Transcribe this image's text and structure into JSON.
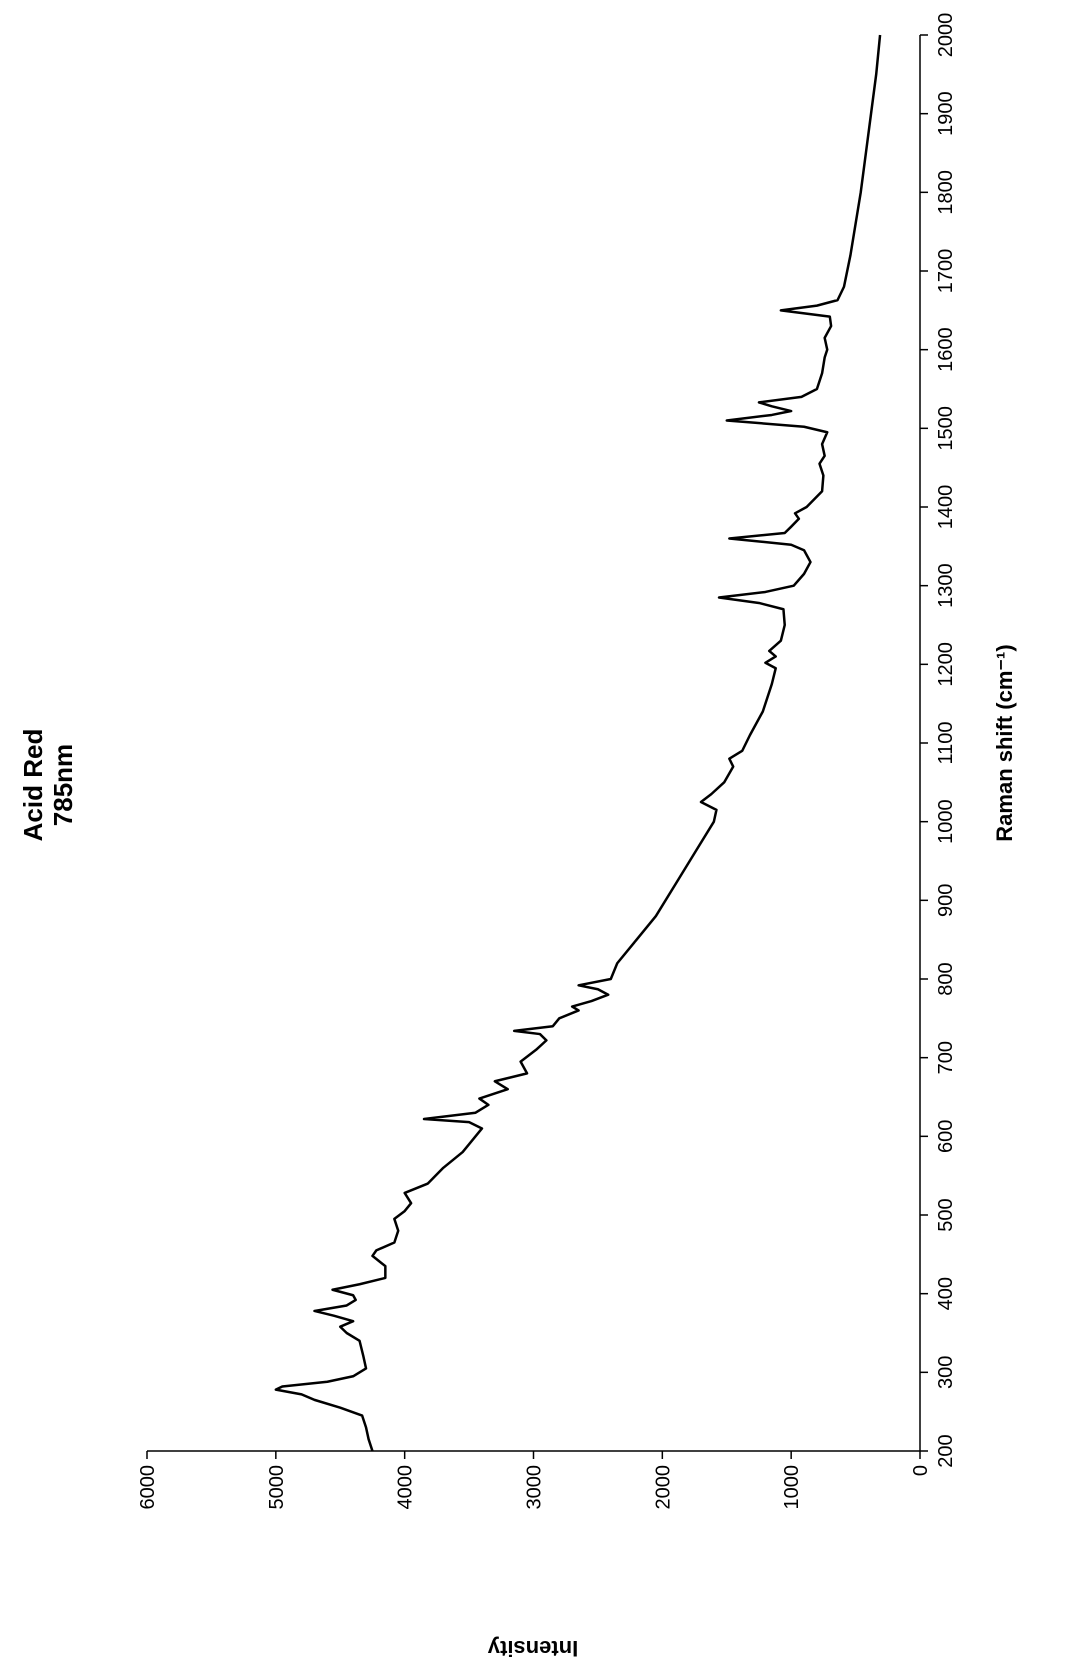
{
  "chart_data": {
    "type": "line",
    "title": "Acid Red",
    "subtitle": "785nm",
    "x_label": "Raman shift (cm⁻¹)",
    "y_label": "Intensity",
    "xlim": [
      200,
      2000
    ],
    "xticks": [
      200,
      300,
      400,
      500,
      600,
      700,
      800,
      900,
      1000,
      1100,
      1200,
      1300,
      1400,
      1500,
      1600,
      1700,
      1800,
      1900,
      2000
    ],
    "ylim": [
      0,
      6000
    ],
    "yticks": [
      0,
      1000,
      2000,
      3000,
      4000,
      5000,
      6000
    ],
    "grid": false,
    "series": [
      {
        "color": "#000000",
        "x": [
          200,
          215,
          230,
          245,
          255,
          265,
          272,
          278,
          282,
          288,
          295,
          305,
          320,
          340,
          350,
          358,
          365,
          372,
          378,
          385,
          392,
          398,
          405,
          412,
          420,
          435,
          448,
          455,
          465,
          480,
          495,
          505,
          515,
          528,
          540,
          560,
          580,
          600,
          610,
          618,
          622,
          630,
          640,
          648,
          660,
          670,
          680,
          695,
          710,
          722,
          730,
          734,
          740,
          750,
          760,
          765,
          772,
          780,
          787,
          792,
          800,
          820,
          850,
          880,
          920,
          960,
          1000,
          1015,
          1025,
          1035,
          1050,
          1070,
          1080,
          1090,
          1110,
          1140,
          1175,
          1195,
          1202,
          1210,
          1217,
          1230,
          1250,
          1270,
          1278,
          1285,
          1292,
          1300,
          1315,
          1330,
          1345,
          1352,
          1360,
          1367,
          1375,
          1385,
          1392,
          1400,
          1420,
          1440,
          1455,
          1465,
          1480,
          1495,
          1502,
          1510,
          1517,
          1522,
          1528,
          1533,
          1540,
          1550,
          1570,
          1590,
          1600,
          1615,
          1630,
          1642,
          1650,
          1656,
          1663,
          1680,
          1720,
          1760,
          1800,
          1850,
          1900,
          1950,
          2000
        ],
        "values": [
          4250,
          4280,
          4300,
          4330,
          4500,
          4700,
          4800,
          5000,
          4950,
          4600,
          4400,
          4300,
          4320,
          4350,
          4450,
          4500,
          4400,
          4550,
          4700,
          4450,
          4380,
          4400,
          4560,
          4350,
          4150,
          4150,
          4250,
          4220,
          4080,
          4050,
          4080,
          4000,
          3950,
          4000,
          3820,
          3700,
          3550,
          3450,
          3400,
          3500,
          3850,
          3450,
          3350,
          3420,
          3200,
          3300,
          3050,
          3100,
          2980,
          2900,
          2950,
          3150,
          2850,
          2800,
          2650,
          2700,
          2550,
          2420,
          2500,
          2650,
          2400,
          2350,
          2200,
          2050,
          1900,
          1750,
          1600,
          1580,
          1700,
          1620,
          1520,
          1450,
          1480,
          1380,
          1320,
          1220,
          1150,
          1120,
          1200,
          1120,
          1170,
          1080,
          1050,
          1060,
          1250,
          1560,
          1200,
          980,
          900,
          850,
          900,
          1000,
          1480,
          1050,
          1000,
          940,
          970,
          880,
          760,
          750,
          780,
          740,
          760,
          720,
          900,
          1500,
          1150,
          1000,
          1150,
          1250,
          920,
          800,
          760,
          740,
          720,
          740,
          690,
          700,
          1080,
          800,
          640,
          590,
          540,
          500,
          460,
          420,
          380,
          340,
          310
        ]
      }
    ]
  }
}
